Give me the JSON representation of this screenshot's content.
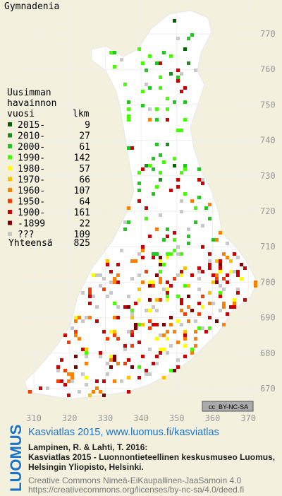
{
  "title": "Gymnadenia",
  "legend": {
    "header": [
      "Uusimman",
      "havainnon",
      "vuosi"
    ],
    "count_header": "lkm",
    "rows": [
      {
        "label": "2015-",
        "count": 9,
        "color": "#006400"
      },
      {
        "label": "2010-",
        "count": 27,
        "color": "#1e8c1e"
      },
      {
        "label": "2000-",
        "count": 61,
        "color": "#22c822"
      },
      {
        "label": "1990-",
        "count": 142,
        "color": "#44ff00"
      },
      {
        "label": "1980-",
        "count": 57,
        "color": "#ffff00"
      },
      {
        "label": "1970-",
        "count": 66,
        "color": "#ffc000"
      },
      {
        "label": "1960-",
        "count": 107,
        "color": "#ff8000"
      },
      {
        "label": "1950-",
        "count": 64,
        "color": "#ff3c00"
      },
      {
        "label": "1900-",
        "count": 161,
        "color": "#cc0000"
      },
      {
        "label": "-1899",
        "count": 22,
        "color": "#800000"
      },
      {
        "label": "???",
        "count": 109,
        "color": "#c8c8c8"
      }
    ],
    "total_label": "Yhteensä",
    "total": 825
  },
  "y_labels": [
    770,
    760,
    750,
    740,
    730,
    720,
    710,
    700,
    690,
    680,
    670
  ],
  "x_labels": [
    310,
    320,
    330,
    340,
    350,
    360,
    370
  ],
  "license_badge": [
    "cc",
    "BY-NC-SA"
  ],
  "footer": {
    "logo": "LUOMUS",
    "link": "Kasviatlas 2015, www.luomus.fi/kasviatlas",
    "citation": [
      "Lampinen, R. & Lahti, T. 2016:",
      "Kasviatlas 2015 - Luonnontieteellinen keskusmuseo Luomus,",
      "Helsingin Yliopisto, Helsinki."
    ],
    "license": [
      "Creative Commons Nimeä-EiKaupallinen-JaaSamoin 4.0",
      "https://creativecommons.org/licenses/by-nc-sa/4.0/deed.fi"
    ]
  }
}
